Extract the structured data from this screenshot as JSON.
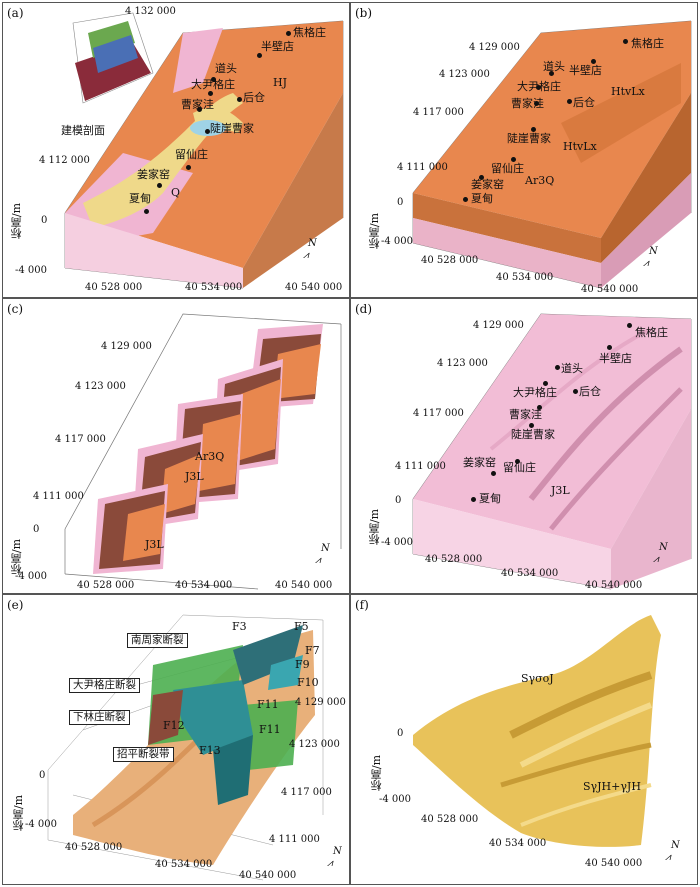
{
  "panels": {
    "a": {
      "label": "(a)",
      "coords": [
        "4 132 000",
        "4 112 000",
        "0",
        "-4 000",
        "40 528 000",
        "40 534 000",
        "40 540 000"
      ],
      "ylabel": "标高/m",
      "inset_caption": "建模剖面",
      "places": [
        "焦格庄",
        "半壁店",
        "道头",
        "大尹格庄",
        "后仓",
        "曹家洼",
        "陡崖曹家",
        "留仙庄",
        "姜家窑",
        "夏甸"
      ],
      "units": [
        "HJ",
        "Q"
      ],
      "north": "N"
    },
    "b": {
      "label": "(b)",
      "coords": [
        "4 129 000",
        "4 123 000",
        "4 117 000",
        "4 111 000",
        "0",
        "-4 000",
        "40 528 000",
        "40 534 000",
        "40 540 000"
      ],
      "ylabel": "标高/m",
      "places": [
        "焦格庄",
        "半壁店",
        "道头",
        "大尹格庄",
        "曹家洼",
        "后仓",
        "陡崖曹家",
        "留仙庄",
        "姜家窑",
        "夏甸"
      ],
      "units": [
        "HtvLx",
        "HtvLx",
        "Ar3Q"
      ],
      "north": "N"
    },
    "c": {
      "label": "(c)",
      "coords": [
        "4 129 000",
        "4 123 000",
        "4 117 000",
        "4 111 000",
        "0",
        "-4 000",
        "40 528 000",
        "40 534 000",
        "40 540 000"
      ],
      "ylabel": "标高/m",
      "units": [
        "Ar3Q",
        "J3L",
        "J3L"
      ],
      "north": "N"
    },
    "d": {
      "label": "(d)",
      "coords": [
        "4 129 000",
        "4 123 000",
        "4 117 000",
        "4 111 000",
        "0",
        "-4 000",
        "40 528 000",
        "40 534 000",
        "40 540 000"
      ],
      "ylabel": "标高/m",
      "places": [
        "焦格庄",
        "半壁店",
        "道头",
        "大尹格庄",
        "后仓",
        "曹家洼",
        "陡崖曹家",
        "姜家窑",
        "留仙庄",
        "夏甸"
      ],
      "units": [
        "J3L"
      ],
      "north": "N"
    },
    "e": {
      "label": "(e)",
      "coords": [
        "4 129 000",
        "4 123 000",
        "4 117 000",
        "4 111 000",
        "0",
        "-4 000",
        "40 528 000",
        "40 534 000",
        "40 540 000"
      ],
      "ylabel": "标高/m",
      "faults": [
        "南周家断裂",
        "大尹格庄断裂",
        "下林庄断裂",
        "招平断裂带"
      ],
      "fault_ids": [
        "F3",
        "F5",
        "F7",
        "F9",
        "F10",
        "F11",
        "F11",
        "F12",
        "F13"
      ],
      "north": "N"
    },
    "f": {
      "label": "(f)",
      "coords": [
        "0",
        "-4 000",
        "40 528 000",
        "40 534 000",
        "40 540 000"
      ],
      "ylabel": "标高/m",
      "units": [
        "SγσoJ",
        "SγJH+γJH"
      ],
      "north": "N"
    }
  },
  "colors": {
    "orange": "#e8874e",
    "orange_dark": "#b9642f",
    "yellow": "#efd98a",
    "pink": "#f0b5d2",
    "pink_light": "#f7d8e8",
    "brown": "#8a4a3a",
    "teal": "#2f8f95",
    "green": "#4caf50",
    "gold": "#e8c25a"
  }
}
